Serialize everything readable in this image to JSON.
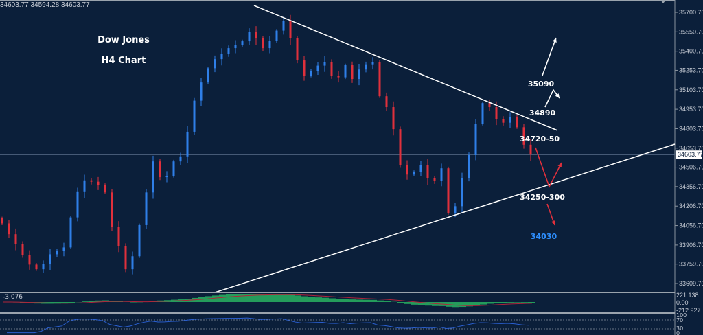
{
  "header": {
    "ohlc_readout": "34603.77 34594.28 34603.77"
  },
  "chart_data": {
    "type": "candlestick",
    "title": "Dow Jones",
    "subtitle": "H4 Chart",
    "current_price": "34603.77",
    "y_ticks": [
      "35700.70",
      "35550.70",
      "35400.70",
      "35253.70",
      "35103.70",
      "34953.70",
      "34803.70",
      "34653.70",
      "34506.70",
      "34356.70",
      "34206.70",
      "34056.70",
      "33906.70",
      "33759.70",
      "33609.70"
    ],
    "ylim": [
      33560,
      35790
    ],
    "closes": [
      34073,
      33990,
      33915,
      33830,
      33756,
      33720,
      33760,
      33835,
      33860,
      33888,
      34120,
      34320,
      34405,
      34395,
      34370,
      34312,
      34047,
      33900,
      33720,
      33820,
      34060,
      34312,
      34551,
      34430,
      34440,
      34551,
      34590,
      34780,
      35020,
      35160,
      35270,
      35340,
      35380,
      35425,
      35450,
      35478,
      35550,
      35500,
      35425,
      35480,
      35560,
      35637,
      35500,
      35330,
      35213,
      35250,
      35290,
      35319,
      35210,
      35200,
      35293,
      35187,
      35260,
      35300,
      35319,
      35054,
      34970,
      34800,
      34524,
      34450,
      34470,
      34524,
      34420,
      34400,
      34498,
      34153,
      34206,
      34420,
      34600,
      34842,
      35001,
      34970,
      34880,
      34850,
      34895,
      34815,
      34680,
      34604
    ],
    "annotations": [
      {
        "text": "35090",
        "color": "#ffffff"
      },
      {
        "text": "34890",
        "color": "#ffffff"
      },
      {
        "text": "34720-50",
        "color": "#ffffff"
      },
      {
        "text": "34250-300",
        "color": "#ffffff"
      },
      {
        "text": "34030",
        "color": "#2e8fff"
      }
    ],
    "colors": {
      "up": "#2f7fe8",
      "down": "#e0303c",
      "background": "#0b1f3a",
      "trendline": "#ffffff",
      "macd_hist": "#2fd36a",
      "macd_signal": "#b0243a",
      "rsi": "#2a5fd0"
    },
    "macd": {
      "label": "-3.076",
      "ticks": [
        "221.138",
        "0.00",
        "-212.927"
      ]
    },
    "rsi": {
      "ticks": [
        "100",
        "70",
        "30",
        "0"
      ]
    }
  }
}
